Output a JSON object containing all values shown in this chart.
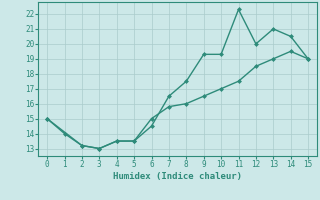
{
  "line1_x": [
    0,
    1,
    2,
    3,
    4,
    5,
    6,
    7,
    8,
    9,
    10,
    11,
    12,
    13,
    14,
    15
  ],
  "line1_y": [
    15,
    14,
    13.2,
    13,
    13.5,
    13.5,
    14.5,
    16.5,
    17.5,
    19.3,
    19.3,
    22.3,
    20,
    21,
    20.5,
    19
  ],
  "line2_x": [
    0,
    2,
    3,
    4,
    5,
    6,
    7,
    8,
    9,
    10,
    11,
    12,
    13,
    14,
    15
  ],
  "line2_y": [
    15,
    13.2,
    13,
    13.5,
    13.5,
    15,
    15.8,
    16,
    16.5,
    17,
    17.5,
    18.5,
    19,
    19.5,
    19
  ],
  "color": "#2e8b7a",
  "bg_color": "#cce8e8",
  "grid_color": "#aacccc",
  "xlabel": "Humidex (Indice chaleur)",
  "xlim": [
    -0.5,
    15.5
  ],
  "ylim": [
    12.5,
    22.8
  ],
  "xticks": [
    0,
    1,
    2,
    3,
    4,
    5,
    6,
    7,
    8,
    9,
    10,
    11,
    12,
    13,
    14,
    15
  ],
  "yticks": [
    13,
    14,
    15,
    16,
    17,
    18,
    19,
    20,
    21,
    22
  ],
  "marker": "D",
  "markersize": 2.5,
  "linewidth": 1.0
}
